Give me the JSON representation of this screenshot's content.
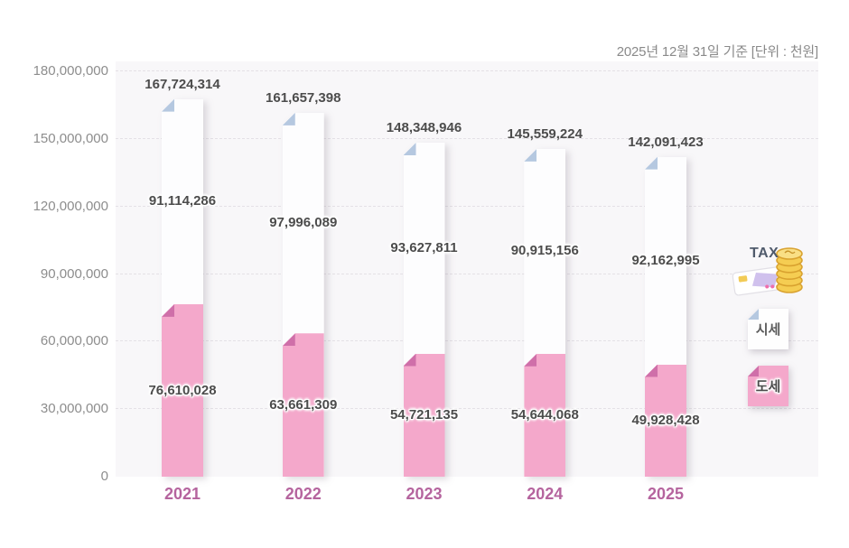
{
  "header": {
    "note": "2025년 12월 31일 기준 [단위 : 천원]"
  },
  "legend": {
    "tax_label": "TAX",
    "market_price": "시세",
    "provincial_tax": "도세"
  },
  "colors": {
    "market_price_bar": "#fdfdfe",
    "market_price_fold": "#b5c8e0",
    "provincial_tax_bar": "#f4a8cb",
    "provincial_tax_fold": "#cf6fa9",
    "year_label": "#b5649e",
    "value_label": "#4c4c4c",
    "plot_background": "#f8f7f9"
  },
  "chart_data": {
    "type": "bar",
    "stacked": true,
    "title": "",
    "note": "2025년 12월 31일 기준 [단위 : 천원]",
    "unit": "천원",
    "categories": [
      "2021",
      "2022",
      "2023",
      "2024",
      "2025"
    ],
    "series": [
      {
        "name": "시세",
        "values": [
          91114286,
          97996089,
          93627811,
          90915156,
          92162995
        ]
      },
      {
        "name": "도세",
        "values": [
          76610028,
          63661309,
          54721135,
          54644068,
          49928428
        ]
      }
    ],
    "totals": [
      167724314,
      161657398,
      148348946,
      145559224,
      142091423
    ],
    "ylim": [
      0,
      180000000
    ],
    "yticks": [
      0,
      30000000,
      60000000,
      90000000,
      120000000,
      150000000,
      180000000
    ],
    "grid": "dashed horizontal",
    "legend_position": "right"
  }
}
